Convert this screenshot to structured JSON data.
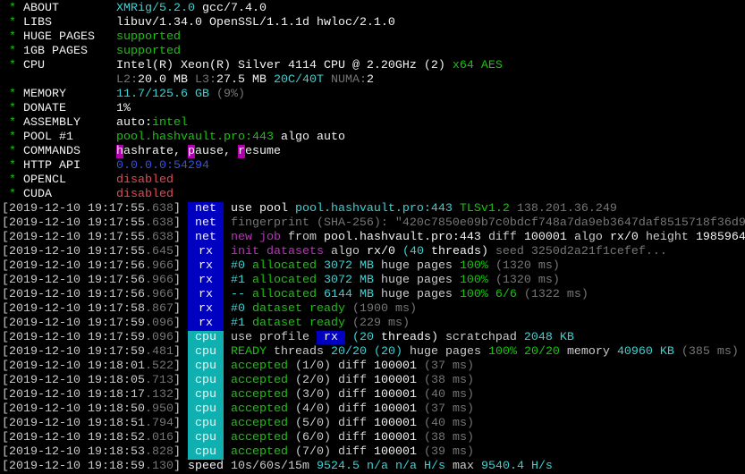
{
  "colors": {
    "tag_net": "#0000c0",
    "tag_rx": "#0000c0",
    "tag_cpu": "#11b0b0",
    "green": "#16c60c",
    "cyan": "#3ad3d3",
    "gray": "#767676",
    "magenta": "#c030c0",
    "red": "#e74856",
    "blue": "#3b4fd8"
  },
  "header": [
    {
      "star": "*",
      "label": "ABOUT",
      "value": [
        [
          "XMRig/5.2.0 ",
          "c"
        ],
        [
          "gcc/7.4.0",
          "W"
        ]
      ]
    },
    {
      "star": "*",
      "label": "LIBS",
      "value": [
        [
          "libuv/1.34.0 OpenSSL/1.1.1d hwloc/2.1.0",
          "W"
        ]
      ]
    },
    {
      "star": "*",
      "label": "HUGE PAGES",
      "value": [
        [
          "supported",
          "g"
        ]
      ]
    },
    {
      "star": "*",
      "label": "1GB PAGES",
      "value": [
        [
          "supported",
          "g"
        ]
      ]
    },
    {
      "star": "*",
      "label": "CPU",
      "value": [
        [
          "Intel(R) Xeon(R) Silver 4114 CPU @ 2.20GHz (2) ",
          "W"
        ],
        [
          "x64 AES",
          "g"
        ]
      ]
    },
    {
      "star": "",
      "label": "",
      "value": [
        [
          "L2:",
          "d"
        ],
        [
          "20.0 MB ",
          "W"
        ],
        [
          "L3:",
          "d"
        ],
        [
          "27.5 MB ",
          "W"
        ],
        [
          "20C/40T ",
          "c"
        ],
        [
          "NUMA:",
          "d"
        ],
        [
          "2",
          "W"
        ]
      ]
    },
    {
      "star": "*",
      "label": "MEMORY",
      "value": [
        [
          "11.7/125.6 GB ",
          "c"
        ],
        [
          "(9%)",
          "d"
        ]
      ]
    },
    {
      "star": "*",
      "label": "DONATE",
      "value": [
        [
          "1%",
          "W"
        ]
      ]
    },
    {
      "star": "*",
      "label": "ASSEMBLY",
      "value": [
        [
          "auto:",
          "W"
        ],
        [
          "intel",
          "g"
        ]
      ]
    },
    {
      "star": "*",
      "label": "POOL #1",
      "value": [
        [
          "pool.hashvault.pro:443 ",
          "g"
        ],
        [
          "algo auto",
          "W"
        ]
      ]
    },
    {
      "star": "*",
      "label": "COMMANDS",
      "value": [
        [
          "h",
          "hl"
        ],
        [
          "ashrate, ",
          "W"
        ],
        [
          "p",
          "hl"
        ],
        [
          "ause, ",
          "W"
        ],
        [
          "r",
          "hl"
        ],
        [
          "esume",
          "W"
        ]
      ]
    },
    {
      "star": "*",
      "label": "HTTP API",
      "value": [
        [
          "0.0.0.0:54294",
          "b"
        ]
      ]
    },
    {
      "star": "*",
      "label": "OPENCL",
      "value": [
        [
          "disabled",
          "r"
        ]
      ]
    },
    {
      "star": "*",
      "label": "CUDA",
      "value": [
        [
          "disabled",
          "r"
        ]
      ]
    }
  ],
  "log": [
    {
      "ts": "[2019-12-10 19:17:55",
      "ms": ".638",
      "tag": "net",
      "parts": [
        [
          "use pool ",
          "W"
        ],
        [
          "pool.hashvault.pro:443 ",
          "c"
        ],
        [
          "TLSv1.2 ",
          "g"
        ],
        [
          "138.201.36.249",
          "d"
        ]
      ]
    },
    {
      "ts": "[2019-12-10 19:17:55",
      "ms": ".638",
      "tag": "net",
      "parts": [
        [
          "fingerprint (SHA-256): \"420c7850e09b7c0bdcf748a7da9eb3647daf8515718f36d9",
          "d"
        ]
      ]
    },
    {
      "ts": "[2019-12-10 19:17:55",
      "ms": ".638",
      "tag": "net",
      "parts": [
        [
          "new job ",
          "m"
        ],
        [
          "from ",
          "w"
        ],
        [
          "pool.hashvault.pro:443 ",
          "W"
        ],
        [
          "diff ",
          "w"
        ],
        [
          "100001 ",
          "W"
        ],
        [
          "algo ",
          "w"
        ],
        [
          "rx/0 ",
          "W"
        ],
        [
          "height ",
          "w"
        ],
        [
          "1985964",
          "W"
        ]
      ]
    },
    {
      "ts": "[2019-12-10 19:17:55",
      "ms": ".645",
      "tag": "rx",
      "parts": [
        [
          "init datasets ",
          "m"
        ],
        [
          "algo ",
          "w"
        ],
        [
          "rx/0 ",
          "W"
        ],
        [
          "(40 ",
          "c"
        ],
        [
          "threads) ",
          "W"
        ],
        [
          "seed 3250d2a21f1cefef...",
          "d"
        ]
      ]
    },
    {
      "ts": "[2019-12-10 19:17:56",
      "ms": ".966",
      "tag": "rx",
      "parts": [
        [
          "#0 ",
          "c"
        ],
        [
          "allocated ",
          "g"
        ],
        [
          "3072 MB ",
          "c"
        ],
        [
          "huge pages ",
          "w"
        ],
        [
          "100% ",
          "g"
        ],
        [
          "(1320 ms)",
          "d"
        ]
      ]
    },
    {
      "ts": "[2019-12-10 19:17:56",
      "ms": ".966",
      "tag": "rx",
      "parts": [
        [
          "#1 ",
          "c"
        ],
        [
          "allocated ",
          "g"
        ],
        [
          "3072 MB ",
          "c"
        ],
        [
          "huge pages ",
          "w"
        ],
        [
          "100% ",
          "g"
        ],
        [
          "(1320 ms)",
          "d"
        ]
      ]
    },
    {
      "ts": "[2019-12-10 19:17:56",
      "ms": ".966",
      "tag": "rx",
      "parts": [
        [
          "-- ",
          "c"
        ],
        [
          "allocated ",
          "g"
        ],
        [
          "6144 MB ",
          "c"
        ],
        [
          "huge pages ",
          "w"
        ],
        [
          "100% 6/6 ",
          "g"
        ],
        [
          "(1322 ms)",
          "d"
        ]
      ]
    },
    {
      "ts": "[2019-12-10 19:17:58",
      "ms": ".867",
      "tag": "rx",
      "parts": [
        [
          "#0 ",
          "c"
        ],
        [
          "dataset ready ",
          "g"
        ],
        [
          "(1900 ms)",
          "d"
        ]
      ]
    },
    {
      "ts": "[2019-12-10 19:17:59",
      "ms": ".096",
      "tag": "rx",
      "parts": [
        [
          "#1 ",
          "c"
        ],
        [
          "dataset ready ",
          "g"
        ],
        [
          "(229 ms)",
          "d"
        ]
      ]
    },
    {
      "ts": "[2019-12-10 19:17:59",
      "ms": ".096",
      "tag": "cpu",
      "parts": [
        [
          "use profile ",
          "w"
        ],
        [
          " rx ",
          "inl"
        ],
        [
          " (20 ",
          "c"
        ],
        [
          "threads) ",
          "W"
        ],
        [
          "scratchpad ",
          "w"
        ],
        [
          "2048 KB",
          "c"
        ]
      ]
    },
    {
      "ts": "[2019-12-10 19:17:59",
      "ms": ".481",
      "tag": "cpu",
      "parts": [
        [
          "READY ",
          "g"
        ],
        [
          "threads ",
          "w"
        ],
        [
          "20/20 ",
          "c"
        ],
        [
          "(20) ",
          "c"
        ],
        [
          "huge pages ",
          "w"
        ],
        [
          "100% 20/20 ",
          "g"
        ],
        [
          "memory ",
          "w"
        ],
        [
          "40960 KB ",
          "c"
        ],
        [
          "(385 ms)",
          "d"
        ]
      ]
    },
    {
      "ts": "[2019-12-10 19:18:01",
      "ms": ".522",
      "tag": "cpu",
      "parts": [
        [
          "accepted ",
          "g"
        ],
        [
          "(1/0) ",
          "w"
        ],
        [
          "diff ",
          "w"
        ],
        [
          "100001 ",
          "W"
        ],
        [
          "(37 ms)",
          "d"
        ]
      ]
    },
    {
      "ts": "[2019-12-10 19:18:05",
      "ms": ".713",
      "tag": "cpu",
      "parts": [
        [
          "accepted ",
          "g"
        ],
        [
          "(2/0) ",
          "w"
        ],
        [
          "diff ",
          "w"
        ],
        [
          "100001 ",
          "W"
        ],
        [
          "(38 ms)",
          "d"
        ]
      ]
    },
    {
      "ts": "[2019-12-10 19:18:17",
      "ms": ".132",
      "tag": "cpu",
      "parts": [
        [
          "accepted ",
          "g"
        ],
        [
          "(3/0) ",
          "w"
        ],
        [
          "diff ",
          "w"
        ],
        [
          "100001 ",
          "W"
        ],
        [
          "(40 ms)",
          "d"
        ]
      ]
    },
    {
      "ts": "[2019-12-10 19:18:50",
      "ms": ".950",
      "tag": "cpu",
      "parts": [
        [
          "accepted ",
          "g"
        ],
        [
          "(4/0) ",
          "w"
        ],
        [
          "diff ",
          "w"
        ],
        [
          "100001 ",
          "W"
        ],
        [
          "(37 ms)",
          "d"
        ]
      ]
    },
    {
      "ts": "[2019-12-10 19:18:51",
      "ms": ".794",
      "tag": "cpu",
      "parts": [
        [
          "accepted ",
          "g"
        ],
        [
          "(5/0) ",
          "w"
        ],
        [
          "diff ",
          "w"
        ],
        [
          "100001 ",
          "W"
        ],
        [
          "(40 ms)",
          "d"
        ]
      ]
    },
    {
      "ts": "[2019-12-10 19:18:52",
      "ms": ".016",
      "tag": "cpu",
      "parts": [
        [
          "accepted ",
          "g"
        ],
        [
          "(6/0) ",
          "w"
        ],
        [
          "diff ",
          "w"
        ],
        [
          "100001 ",
          "W"
        ],
        [
          "(38 ms)",
          "d"
        ]
      ]
    },
    {
      "ts": "[2019-12-10 19:18:53",
      "ms": ".828",
      "tag": "cpu",
      "parts": [
        [
          "accepted ",
          "g"
        ],
        [
          "(7/0) ",
          "w"
        ],
        [
          "diff ",
          "w"
        ],
        [
          "100001 ",
          "W"
        ],
        [
          "(39 ms)",
          "d"
        ]
      ]
    },
    {
      "ts": "[2019-12-10 19:18:59",
      "ms": ".130",
      "tag": "",
      "parts": [
        [
          "speed ",
          "W"
        ],
        [
          "10s/60s/15m ",
          "w"
        ],
        [
          "9524.5 ",
          "c"
        ],
        [
          "n/a n/a ",
          "c"
        ],
        [
          "H/s ",
          "c"
        ],
        [
          "max ",
          "w"
        ],
        [
          "9540.4 H/s",
          "c"
        ]
      ]
    }
  ]
}
